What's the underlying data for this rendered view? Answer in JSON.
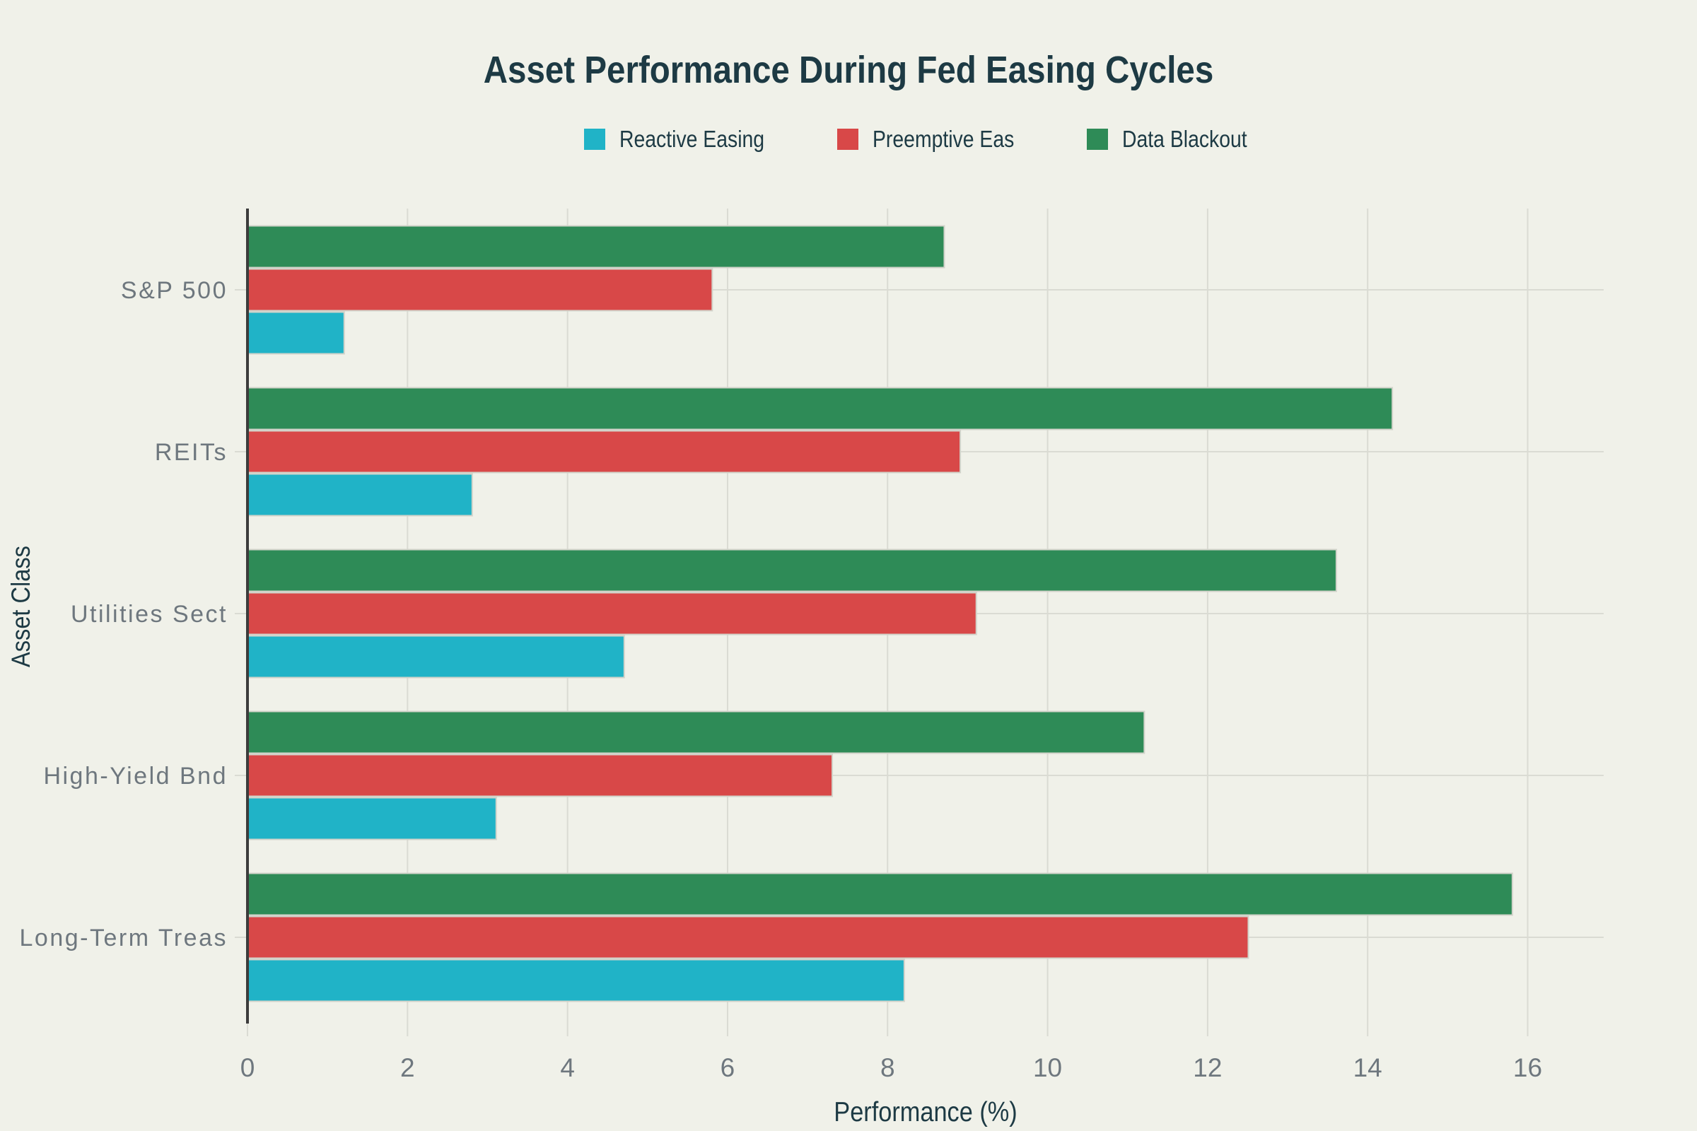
{
  "title": "Asset Performance During Fed Easing Cycles",
  "chart_data": {
    "type": "bar",
    "orientation": "horizontal",
    "title": "Asset Performance During Fed Easing Cycles",
    "xlabel": "Performance (%)",
    "ylabel": "Asset Class",
    "categories": [
      "S&P 500",
      "REITs",
      "Utilities Sect",
      "High-Yield Bnd",
      "Long-Term Treas"
    ],
    "series": [
      {
        "name": "Reactive Easing",
        "color": "#20b3c7",
        "values": [
          1.2,
          2.8,
          4.7,
          3.1,
          8.2
        ]
      },
      {
        "name": "Preemptive Eas",
        "color": "#d84848",
        "values": [
          5.8,
          8.9,
          9.1,
          7.3,
          12.5
        ]
      },
      {
        "name": "Data Blackout",
        "color": "#2e8b57",
        "values": [
          8.7,
          14.3,
          13.6,
          11.2,
          15.8
        ]
      }
    ],
    "xticks": [
      0,
      2,
      4,
      6,
      8,
      10,
      12,
      14,
      16
    ],
    "xlim": [
      0,
      16.95
    ],
    "grid": true,
    "legend_position": "top-center"
  },
  "colors": {
    "background": "#f0f1e9",
    "title_text": "#1d3a44",
    "axis_label_text": "#1d3a44",
    "tick_text": "#6e777e",
    "gridline": "#dadbd3",
    "axis_spine": "#3c3c3c",
    "bar_edge": "#d2d3ca"
  }
}
